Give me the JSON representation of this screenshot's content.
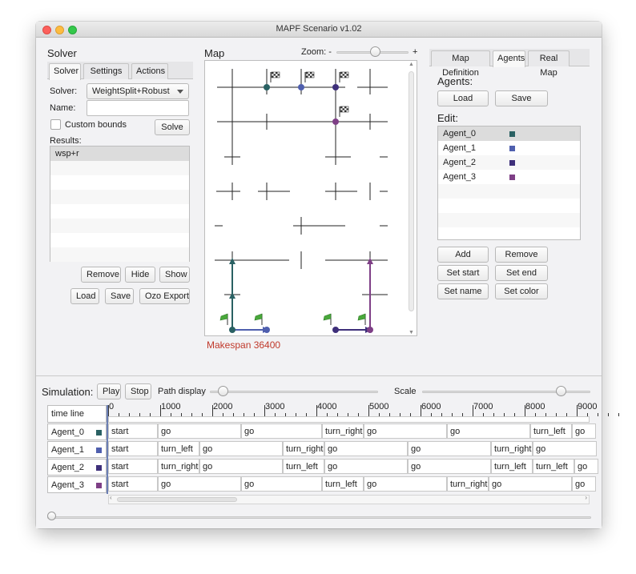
{
  "window": {
    "title": "MAPF Scenario v1.02"
  },
  "solver": {
    "title": "Solver",
    "tabs": [
      "Solver",
      "Settings",
      "Actions"
    ],
    "solver_label": "Solver:",
    "solver_value": "WeightSplit+Robust",
    "name_label": "Name:",
    "name_value": "",
    "custom_bounds_label": "Custom bounds",
    "solve_button": "Solve",
    "results_label": "Results:",
    "results": [
      "wsp+r"
    ],
    "buttons": {
      "remove": "Remove",
      "hide": "Hide",
      "show": "Show",
      "load": "Load",
      "save": "Save",
      "ozo_export": "Ozo Export"
    }
  },
  "map": {
    "title": "Map",
    "zoom_label": "Zoom: -",
    "zoom_plus": "+",
    "zoom_level": 0.55,
    "makespan": "Makespan 36400",
    "makespan_color": "#c0392b"
  },
  "right": {
    "tabs": [
      "Map Definition",
      "Agents",
      "Real Map"
    ],
    "agents_label": "Agents:",
    "load": "Load",
    "save": "Save",
    "edit_label": "Edit:",
    "agents": [
      {
        "name": "Agent_0",
        "color": "#2a6163"
      },
      {
        "name": "Agent_1",
        "color": "#4f5fae"
      },
      {
        "name": "Agent_2",
        "color": "#3e2f7a"
      },
      {
        "name": "Agent_3",
        "color": "#7e3f86"
      }
    ],
    "buttons": {
      "add": "Add",
      "remove": "Remove",
      "set_start": "Set start",
      "set_end": "Set end",
      "set_name": "Set name",
      "set_color": "Set color"
    }
  },
  "simulation": {
    "label": "Simulation:",
    "play": "Play",
    "stop": "Stop",
    "path_display_label": "Path display",
    "path_display_value": 0.05,
    "scale_label": "Scale",
    "scale_value": 0.85,
    "timeline_header": "time line",
    "ruler": [
      "0",
      "1000",
      "2000",
      "3000",
      "4000",
      "5000",
      "6000",
      "7000",
      "8000",
      "9000"
    ],
    "rows": [
      {
        "agent": "Agent_0",
        "color": "#2a6163",
        "actions": [
          "start",
          "go",
          "go",
          "turn_right",
          "go",
          "go",
          "turn_left",
          "go"
        ]
      },
      {
        "agent": "Agent_1",
        "color": "#4f5fae",
        "actions": [
          "start",
          "turn_left",
          "go",
          "turn_right",
          "go",
          "go",
          "turn_right",
          "go"
        ]
      },
      {
        "agent": "Agent_2",
        "color": "#3e2f7a",
        "actions": [
          "start",
          "turn_right",
          "go",
          "turn_left",
          "go",
          "go",
          "turn_left",
          "turn_left",
          "go"
        ]
      },
      {
        "agent": "Agent_3",
        "color": "#7e3f86",
        "actions": [
          "start",
          "go",
          "go",
          "turn_left",
          "go",
          "turn_right",
          "go",
          "go"
        ]
      }
    ],
    "scroll_position": 0.0
  }
}
